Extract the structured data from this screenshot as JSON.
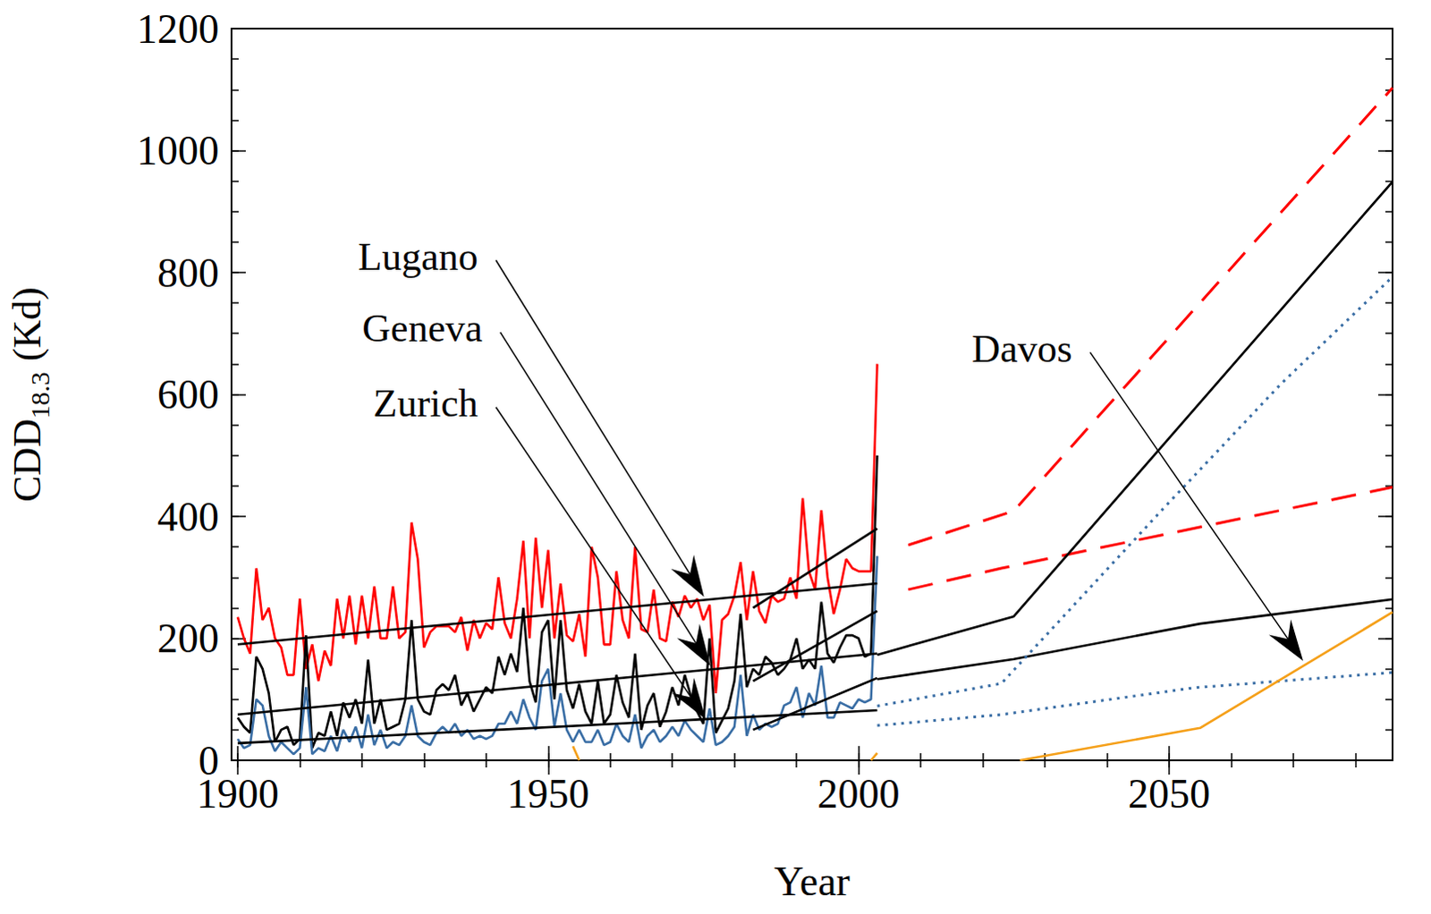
{
  "chart_data": {
    "type": "line",
    "xlabel": "Year",
    "ylabel": {
      "text": "CDD",
      "subscript": "18.3",
      "unit": "(Kd)"
    },
    "xlim": [
      1899,
      2086
    ],
    "xticks": [
      1900,
      1950,
      2000,
      2050
    ],
    "ylim": [
      0,
      1200
    ],
    "yticks": [
      0,
      200,
      400,
      600,
      800,
      1000,
      1200
    ],
    "grid": false,
    "series": [
      {
        "name": "Lugano",
        "color": "#ff0000",
        "line_style": "solid",
        "x": [
          1900,
          1901,
          1902,
          1903,
          1904,
          1905,
          1906,
          1907,
          1908,
          1909,
          1910,
          1911,
          1912,
          1913,
          1914,
          1915,
          1916,
          1917,
          1918,
          1919,
          1920,
          1921,
          1922,
          1923,
          1924,
          1925,
          1926,
          1927,
          1928,
          1929,
          1930,
          1931,
          1932,
          1933,
          1934,
          1935,
          1936,
          1937,
          1938,
          1939,
          1940,
          1941,
          1942,
          1943,
          1944,
          1945,
          1946,
          1947,
          1948,
          1949,
          1950,
          1951,
          1952,
          1953,
          1954,
          1955,
          1956,
          1957,
          1958,
          1959,
          1960,
          1961,
          1962,
          1963,
          1964,
          1965,
          1966,
          1967,
          1968,
          1969,
          1970,
          1971,
          1972,
          1973,
          1974,
          1975,
          1976,
          1977,
          1978,
          1979,
          1980,
          1981,
          1982,
          1983,
          1984,
          1985,
          1986,
          1987,
          1988,
          1989,
          1990,
          1991,
          1992,
          1993,
          1994,
          1995,
          1996,
          1997,
          1998,
          1999,
          2000,
          2001,
          2002,
          2003
        ],
        "values": [
          235,
          200,
          175,
          315,
          230,
          250,
          200,
          185,
          140,
          140,
          265,
          150,
          190,
          130,
          180,
          155,
          265,
          200,
          270,
          190,
          270,
          200,
          285,
          200,
          200,
          285,
          200,
          210,
          390,
          330,
          185,
          210,
          220,
          220,
          220,
          210,
          235,
          180,
          230,
          200,
          225,
          215,
          300,
          225,
          200,
          265,
          360,
          200,
          365,
          250,
          345,
          200,
          290,
          205,
          195,
          240,
          170,
          350,
          300,
          190,
          190,
          310,
          230,
          200,
          350,
          215,
          210,
          280,
          200,
          195,
          260,
          235,
          270,
          250,
          265,
          230,
          255,
          110,
          230,
          240,
          270,
          325,
          230,
          310,
          245,
          225,
          270,
          260,
          265,
          300,
          265,
          430,
          310,
          280,
          410,
          300,
          240,
          280,
          330,
          315,
          310,
          310,
          310,
          650
        ]
      },
      {
        "name": "Geneva",
        "color": "#000000",
        "line_style": "solid",
        "x": [
          1900,
          1901,
          1902,
          1903,
          1904,
          1905,
          1906,
          1907,
          1908,
          1909,
          1910,
          1911,
          1912,
          1913,
          1914,
          1915,
          1916,
          1917,
          1918,
          1919,
          1920,
          1921,
          1922,
          1923,
          1924,
          1925,
          1926,
          1927,
          1928,
          1929,
          1930,
          1931,
          1932,
          1933,
          1934,
          1935,
          1936,
          1937,
          1938,
          1939,
          1940,
          1941,
          1942,
          1943,
          1944,
          1945,
          1946,
          1947,
          1948,
          1949,
          1950,
          1951,
          1952,
          1953,
          1954,
          1955,
          1956,
          1957,
          1958,
          1959,
          1960,
          1961,
          1962,
          1963,
          1964,
          1965,
          1966,
          1967,
          1968,
          1969,
          1970,
          1971,
          1972,
          1973,
          1974,
          1975,
          1976,
          1977,
          1978,
          1979,
          1980,
          1981,
          1982,
          1983,
          1984,
          1985,
          1986,
          1987,
          1988,
          1989,
          1990,
          1991,
          1992,
          1993,
          1994,
          1995,
          1996,
          1997,
          1998,
          1999,
          2000,
          2001,
          2002,
          2003
        ],
        "values": [
          70,
          55,
          45,
          170,
          150,
          110,
          30,
          50,
          55,
          25,
          35,
          205,
          20,
          45,
          40,
          80,
          40,
          95,
          70,
          100,
          60,
          165,
          60,
          100,
          50,
          55,
          60,
          100,
          230,
          100,
          80,
          75,
          115,
          125,
          115,
          140,
          90,
          110,
          80,
          100,
          120,
          110,
          170,
          140,
          175,
          145,
          250,
          130,
          95,
          210,
          230,
          100,
          230,
          115,
          85,
          125,
          80,
          60,
          130,
          60,
          75,
          140,
          95,
          70,
          175,
          50,
          90,
          110,
          55,
          80,
          120,
          90,
          140,
          105,
          80,
          60,
          200,
          45,
          65,
          85,
          130,
          240,
          120,
          150,
          140,
          170,
          160,
          140,
          150,
          165,
          200,
          150,
          165,
          150,
          260,
          175,
          160,
          185,
          205,
          205,
          200,
          170,
          175,
          500
        ]
      },
      {
        "name": "Zurich",
        "color": "#3a6ea5",
        "line_style": "solid",
        "x": [
          1900,
          1901,
          1902,
          1903,
          1904,
          1905,
          1906,
          1907,
          1908,
          1909,
          1910,
          1911,
          1912,
          1913,
          1914,
          1915,
          1916,
          1917,
          1918,
          1919,
          1920,
          1921,
          1922,
          1923,
          1924,
          1925,
          1926,
          1927,
          1928,
          1929,
          1930,
          1931,
          1932,
          1933,
          1934,
          1935,
          1936,
          1937,
          1938,
          1939,
          1940,
          1941,
          1942,
          1943,
          1944,
          1945,
          1946,
          1947,
          1948,
          1949,
          1950,
          1951,
          1952,
          1953,
          1954,
          1955,
          1956,
          1957,
          1958,
          1959,
          1960,
          1961,
          1962,
          1963,
          1964,
          1965,
          1966,
          1967,
          1968,
          1969,
          1970,
          1971,
          1972,
          1973,
          1974,
          1975,
          1976,
          1977,
          1978,
          1979,
          1980,
          1981,
          1982,
          1983,
          1984,
          1985,
          1986,
          1987,
          1988,
          1989,
          1990,
          1991,
          1992,
          1993,
          1994,
          1995,
          1996,
          1997,
          1998,
          1999,
          2000,
          2001,
          2002,
          2003
        ],
        "values": [
          35,
          20,
          25,
          100,
          90,
          40,
          15,
          30,
          20,
          10,
          20,
          120,
          10,
          20,
          15,
          40,
          15,
          50,
          30,
          55,
          20,
          75,
          25,
          50,
          20,
          30,
          25,
          40,
          90,
          40,
          30,
          25,
          45,
          55,
          45,
          60,
          40,
          50,
          35,
          40,
          35,
          40,
          60,
          60,
          80,
          60,
          100,
          70,
          50,
          130,
          150,
          55,
          110,
          50,
          30,
          50,
          30,
          30,
          50,
          25,
          30,
          60,
          40,
          30,
          75,
          20,
          40,
          50,
          30,
          40,
          55,
          40,
          65,
          50,
          40,
          30,
          85,
          25,
          30,
          40,
          55,
          140,
          40,
          75,
          50,
          60,
          55,
          60,
          90,
          95,
          120,
          70,
          110,
          90,
          155,
          70,
          70,
          95,
          90,
          85,
          100,
          95,
          100,
          335
        ]
      },
      {
        "name": "Lugano",
        "color": "#000000",
        "line_style": "solid",
        "x": [
          1900,
          2003
        ],
        "values": [
          190,
          290
        ]
      },
      {
        "name": "Geneva",
        "color": "#000000",
        "line_style": "solid",
        "x": [
          1900,
          2003
        ],
        "values": [
          75,
          175
        ]
      },
      {
        "name": "Zurich",
        "color": "#000000",
        "line_style": "solid",
        "x": [
          1900,
          2003
        ],
        "values": [
          28,
          82
        ]
      },
      {
        "name": "Lugano",
        "color": "#000000",
        "line_style": "solid",
        "x": [
          1983,
          2003
        ],
        "values": [
          250,
          380
        ]
      },
      {
        "name": "Geneva",
        "color": "#000000",
        "line_style": "solid",
        "x": [
          1983,
          2003
        ],
        "values": [
          130,
          245
        ]
      },
      {
        "name": "Zurich",
        "color": "#000000",
        "line_style": "solid",
        "x": [
          1983,
          2003
        ],
        "values": [
          50,
          135
        ]
      },
      {
        "name": "Lugano",
        "color": "#ff0000",
        "line_style": "dashed",
        "x": [
          2008,
          2025,
          2086
        ],
        "values": [
          353,
          409,
          1103
        ]
      },
      {
        "name": "Lugano",
        "color": "#ff0000",
        "line_style": "dashed",
        "x": [
          2008,
          2023,
          2086
        ],
        "values": [
          280,
          315,
          448
        ]
      },
      {
        "name": "Geneva",
        "color": "#000000",
        "line_style": "solid",
        "x": [
          2003,
          2025,
          2086
        ],
        "values": [
          173,
          236,
          949
        ]
      },
      {
        "name": "Geneva",
        "color": "#000000",
        "line_style": "solid",
        "x": [
          2003,
          2025,
          2055,
          2086
        ],
        "values": [
          133,
          166,
          224,
          264
        ]
      },
      {
        "name": "Zurich",
        "color": "#3a6ea5",
        "line_style": "dotted",
        "x": [
          2003,
          2023,
          2049,
          2068,
          2086
        ],
        "values": [
          89,
          126,
          412,
          617,
          793
        ]
      },
      {
        "name": "Zurich",
        "color": "#3a6ea5",
        "line_style": "dotted",
        "x": [
          2003,
          2023,
          2054,
          2086
        ],
        "values": [
          57,
          75,
          119,
          144
        ]
      },
      {
        "name": "Davos",
        "color": "#f5a01a",
        "line_style": "solid",
        "x": [
          1954,
          1955,
          1980,
          2002,
          2003
        ],
        "values": [
          23,
          0,
          null,
          0,
          12
        ]
      },
      {
        "name": "Davos",
        "color": "#f5a01a",
        "line_style": "solid",
        "x": [
          2026,
          2055,
          2086
        ],
        "values": [
          0,
          53,
          243
        ]
      }
    ],
    "annotations": [
      {
        "text": "Lugano",
        "x": 1939.0,
        "y": 826,
        "arrow_to": [
          1975.1,
          268
        ]
      },
      {
        "text": "Geneva",
        "x": 1939.7,
        "y": 708,
        "arrow_to": [
          1976.1,
          155
        ]
      },
      {
        "text": "Zurich",
        "x": 1939.0,
        "y": 585,
        "arrow_to": [
          1975.4,
          67
        ]
      },
      {
        "text": "Davos",
        "x": 2034.7,
        "y": 675,
        "arrow_to": [
          2071.6,
          163
        ]
      }
    ]
  }
}
